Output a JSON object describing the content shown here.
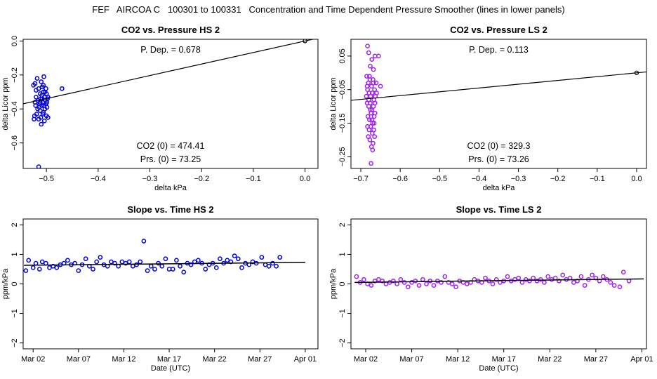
{
  "page_title": "FEF   AIRCOA C   100301 to 100331   Concentration and Time Dependent Pressure Smoother (lines in lower panels)",
  "colors": {
    "hs": "#0000dd",
    "ls": "#a020f0",
    "line": "#000000"
  },
  "chart_data": [
    {
      "type": "scatter",
      "title": "CO2 vs. Pressure HS 2",
      "xlabel": "delta kPa",
      "ylabel": "delta Licor ppm",
      "xlim": [
        -0.545,
        0.025
      ],
      "ylim": [
        -0.75,
        0.01
      ],
      "xticks": [
        -0.5,
        -0.4,
        -0.3,
        -0.2,
        -0.1,
        0.0
      ],
      "xtick_labels": [
        "−0.5",
        "−0.4",
        "−0.3",
        "−0.2",
        "−0.1",
        "0.0"
      ],
      "yticks": [
        0.0,
        -0.2,
        -0.4,
        -0.6
      ],
      "ytick_labels": [
        "0.0",
        "−0.2",
        "−0.4",
        "−0.6"
      ],
      "fit_line": {
        "slope": 0.678,
        "intercept": 0.0
      },
      "annotations": {
        "p_dep": "P. Dep. =  0.678",
        "co2_0": "CO2 (0) =  474.41",
        "prs_0": "Prs. (0) = 73.25"
      },
      "series_color": "hs",
      "origin_point": [
        0.0,
        0.0
      ],
      "points": [
        [
          -0.522,
          -0.25
        ],
        [
          -0.518,
          -0.22
        ],
        [
          -0.515,
          -0.28
        ],
        [
          -0.512,
          -0.31
        ],
        [
          -0.51,
          -0.24
        ],
        [
          -0.508,
          -0.27
        ],
        [
          -0.505,
          -0.21
        ],
        [
          -0.503,
          -0.3
        ],
        [
          -0.52,
          -0.33
        ],
        [
          -0.516,
          -0.35
        ],
        [
          -0.513,
          -0.37
        ],
        [
          -0.511,
          -0.34
        ],
        [
          -0.509,
          -0.32
        ],
        [
          -0.507,
          -0.36
        ],
        [
          -0.504,
          -0.33
        ],
        [
          -0.502,
          -0.35
        ],
        [
          -0.5,
          -0.31
        ],
        [
          -0.498,
          -0.34
        ],
        [
          -0.521,
          -0.38
        ],
        [
          -0.517,
          -0.4
        ],
        [
          -0.514,
          -0.39
        ],
        [
          -0.512,
          -0.41
        ],
        [
          -0.509,
          -0.38
        ],
        [
          -0.506,
          -0.42
        ],
        [
          -0.503,
          -0.4
        ],
        [
          -0.501,
          -0.37
        ],
        [
          -0.499,
          -0.39
        ],
        [
          -0.523,
          -0.44
        ],
        [
          -0.519,
          -0.43
        ],
        [
          -0.515,
          -0.46
        ],
        [
          -0.511,
          -0.45
        ],
        [
          -0.507,
          -0.43
        ],
        [
          -0.504,
          -0.47
        ],
        [
          -0.5,
          -0.44
        ],
        [
          -0.524,
          -0.46
        ],
        [
          -0.497,
          -0.45
        ],
        [
          -0.51,
          -0.49
        ],
        [
          -0.52,
          -0.29
        ],
        [
          -0.506,
          -0.26
        ],
        [
          -0.501,
          -0.28
        ],
        [
          -0.499,
          -0.36
        ],
        [
          -0.497,
          -0.33
        ],
        [
          -0.512,
          -0.36
        ],
        [
          -0.508,
          -0.34
        ],
        [
          -0.505,
          -0.38
        ],
        [
          -0.522,
          -0.36
        ],
        [
          -0.525,
          -0.26
        ],
        [
          -0.47,
          -0.28
        ],
        [
          -0.515,
          -0.74
        ],
        [
          -0.506,
          -0.3
        ]
      ]
    },
    {
      "type": "scatter",
      "title": "CO2 vs. Pressure LS 2",
      "xlabel": "delta kPa",
      "ylabel": "delta Licor ppm",
      "xlim": [
        -0.725,
        0.025
      ],
      "ylim": [
        -0.285,
        0.1
      ],
      "xticks": [
        -0.7,
        -0.6,
        -0.5,
        -0.4,
        -0.3,
        -0.2,
        -0.1,
        0.0
      ],
      "xtick_labels": [
        "−0.7",
        "−0.6",
        "−0.5",
        "−0.4",
        "−0.3",
        "−0.2",
        "−0.1",
        "0.0"
      ],
      "yticks": [
        0.05,
        -0.05,
        -0.15,
        -0.25
      ],
      "ytick_labels": [
        "0.05",
        "−0.05",
        "−0.15",
        "−0.25"
      ],
      "fit_line": {
        "slope": 0.113,
        "intercept": 0.0
      },
      "annotations": {
        "p_dep": "P. Dep. =  0.113",
        "co2_0": "CO2 (0) =  329.3",
        "prs_0": "Prs. (0) = 73.26"
      },
      "series_color": "ls",
      "origin_point": [
        0.0,
        0.0
      ],
      "points": [
        [
          -0.683,
          0.08
        ],
        [
          -0.68,
          0.06
        ],
        [
          -0.676,
          0.02
        ],
        [
          -0.672,
          0.04
        ],
        [
          -0.668,
          0.01
        ],
        [
          -0.664,
          0.05
        ],
        [
          -0.685,
          -0.01
        ],
        [
          -0.681,
          -0.03
        ],
        [
          -0.677,
          -0.02
        ],
        [
          -0.673,
          -0.04
        ],
        [
          -0.669,
          -0.02
        ],
        [
          -0.665,
          -0.05
        ],
        [
          -0.661,
          -0.03
        ],
        [
          -0.683,
          -0.05
        ],
        [
          -0.679,
          -0.06
        ],
        [
          -0.675,
          -0.07
        ],
        [
          -0.671,
          -0.06
        ],
        [
          -0.667,
          -0.08
        ],
        [
          -0.663,
          -0.07
        ],
        [
          -0.684,
          -0.09
        ],
        [
          -0.68,
          -0.1
        ],
        [
          -0.676,
          -0.09
        ],
        [
          -0.672,
          -0.11
        ],
        [
          -0.668,
          -0.1
        ],
        [
          -0.664,
          -0.12
        ],
        [
          -0.682,
          -0.13
        ],
        [
          -0.678,
          -0.14
        ],
        [
          -0.674,
          -0.12
        ],
        [
          -0.67,
          -0.15
        ],
        [
          -0.666,
          -0.13
        ],
        [
          -0.683,
          -0.16
        ],
        [
          -0.679,
          -0.17
        ],
        [
          -0.675,
          -0.16
        ],
        [
          -0.671,
          -0.18
        ],
        [
          -0.667,
          -0.17
        ],
        [
          -0.681,
          -0.19
        ],
        [
          -0.677,
          -0.2
        ],
        [
          -0.673,
          -0.22
        ],
        [
          -0.669,
          -0.21
        ],
        [
          -0.665,
          -0.19
        ],
        [
          -0.684,
          -0.04
        ],
        [
          -0.68,
          -0.08
        ],
        [
          -0.676,
          -0.11
        ],
        [
          -0.672,
          -0.14
        ],
        [
          -0.668,
          -0.03
        ],
        [
          -0.664,
          -0.09
        ],
        [
          -0.66,
          -0.06
        ],
        [
          -0.655,
          0.05
        ],
        [
          -0.65,
          -0.04
        ],
        [
          -0.674,
          -0.27
        ],
        [
          -0.67,
          -0.23
        ],
        [
          -0.686,
          -0.07
        ],
        [
          -0.678,
          -0.01
        ],
        [
          -0.666,
          -0.15
        ]
      ]
    },
    {
      "type": "scatter",
      "title": "Slope vs. Time HS 2",
      "xlabel": "Date (UTC)",
      "ylabel": "ppm/kPa",
      "xlim": [
        -1.1,
        31.4
      ],
      "ylim": [
        -2.2,
        2.2
      ],
      "xticks": [
        0,
        5,
        10,
        15,
        20,
        25,
        30
      ],
      "xtick_labels": [
        "Mar 02",
        "Mar 07",
        "Mar 12",
        "Mar 17",
        "Mar 22",
        "Mar 27",
        "Apr 01"
      ],
      "yticks": [
        -2,
        -1,
        0,
        1,
        2
      ],
      "ytick_labels": [
        "−2",
        "−1",
        "0",
        "1",
        "2"
      ],
      "smoother": {
        "x": [
          -1,
          30
        ],
        "y": [
          0.63,
          0.73
        ]
      },
      "series_color": "hs",
      "points": [
        [
          -0.8,
          0.45
        ],
        [
          -0.5,
          0.8
        ],
        [
          0.0,
          0.55
        ],
        [
          0.3,
          0.7
        ],
        [
          0.7,
          0.5
        ],
        [
          1.0,
          0.75
        ],
        [
          1.4,
          0.7
        ],
        [
          1.8,
          0.55
        ],
        [
          2.2,
          0.6
        ],
        [
          2.6,
          0.55
        ],
        [
          3.0,
          0.65
        ],
        [
          3.4,
          0.7
        ],
        [
          3.8,
          0.8
        ],
        [
          4.2,
          0.65
        ],
        [
          4.6,
          0.7
        ],
        [
          5.0,
          0.45
        ],
        [
          5.4,
          0.65
        ],
        [
          5.8,
          0.85
        ],
        [
          6.2,
          0.6
        ],
        [
          6.6,
          0.5
        ],
        [
          7.0,
          0.75
        ],
        [
          7.4,
          0.9
        ],
        [
          7.8,
          0.65
        ],
        [
          8.2,
          0.6
        ],
        [
          8.6,
          0.75
        ],
        [
          9.0,
          0.7
        ],
        [
          9.4,
          0.6
        ],
        [
          9.8,
          0.75
        ],
        [
          10.2,
          0.7
        ],
        [
          10.6,
          0.75
        ],
        [
          11.0,
          0.6
        ],
        [
          11.4,
          0.65
        ],
        [
          11.8,
          0.75
        ],
        [
          12.2,
          1.45
        ],
        [
          12.6,
          0.45
        ],
        [
          13.0,
          0.6
        ],
        [
          13.4,
          0.5
        ],
        [
          13.8,
          0.7
        ],
        [
          14.2,
          0.6
        ],
        [
          14.6,
          0.85
        ],
        [
          15.0,
          0.5
        ],
        [
          15.4,
          0.5
        ],
        [
          15.8,
          0.8
        ],
        [
          16.2,
          0.6
        ],
        [
          16.6,
          0.4
        ],
        [
          17.0,
          0.7
        ],
        [
          17.4,
          0.65
        ],
        [
          17.8,
          0.75
        ],
        [
          18.2,
          0.8
        ],
        [
          18.6,
          0.7
        ],
        [
          19.0,
          0.5
        ],
        [
          19.4,
          0.65
        ],
        [
          19.8,
          0.7
        ],
        [
          20.2,
          0.55
        ],
        [
          20.6,
          0.85
        ],
        [
          21.0,
          0.7
        ],
        [
          21.4,
          0.8
        ],
        [
          21.8,
          0.75
        ],
        [
          22.2,
          0.95
        ],
        [
          22.6,
          0.85
        ],
        [
          23.0,
          0.55
        ],
        [
          23.4,
          0.7
        ],
        [
          23.8,
          0.65
        ],
        [
          24.2,
          0.75
        ],
        [
          24.6,
          0.7
        ],
        [
          25.2,
          0.9
        ],
        [
          25.6,
          0.65
        ],
        [
          26.0,
          0.6
        ],
        [
          26.4,
          0.7
        ],
        [
          26.8,
          0.6
        ],
        [
          27.2,
          0.9
        ]
      ]
    },
    {
      "type": "scatter",
      "title": "Slope vs. Time LS 2",
      "xlabel": "Date (UTC)",
      "ylabel": "ppm/kPa",
      "xlim": [
        -1.6,
        30.5
      ],
      "ylim": [
        -2.2,
        2.2
      ],
      "xticks": [
        0,
        5,
        10,
        15,
        20,
        25,
        30
      ],
      "xtick_labels": [
        "Mar 02",
        "Mar 07",
        "Mar 12",
        "Mar 17",
        "Mar 22",
        "Mar 27",
        "Apr 01"
      ],
      "yticks": [
        -2,
        -1,
        0,
        1,
        2
      ],
      "ytick_labels": [
        "−2",
        "−1",
        "0",
        "1",
        "2"
      ],
      "smoother": {
        "x": [
          -1.2,
          30.2
        ],
        "y": [
          0.05,
          0.17
        ]
      },
      "series_color": "ls",
      "points": [
        [
          -1.0,
          0.25
        ],
        [
          -0.6,
          0.05
        ],
        [
          -0.2,
          0.15
        ],
        [
          0.2,
          0.0
        ],
        [
          0.6,
          -0.05
        ],
        [
          1.0,
          0.1
        ],
        [
          1.4,
          0.15
        ],
        [
          1.8,
          0.1
        ],
        [
          2.2,
          0.0
        ],
        [
          2.6,
          0.05
        ],
        [
          3.0,
          0.1
        ],
        [
          3.4,
          0.0
        ],
        [
          3.8,
          0.15
        ],
        [
          4.2,
          0.05
        ],
        [
          4.6,
          -0.1
        ],
        [
          5.0,
          0.05
        ],
        [
          5.4,
          0.1
        ],
        [
          5.8,
          -0.05
        ],
        [
          6.2,
          0.15
        ],
        [
          6.6,
          0.0
        ],
        [
          7.0,
          0.1
        ],
        [
          7.4,
          -0.05
        ],
        [
          7.8,
          0.1
        ],
        [
          8.2,
          0.05
        ],
        [
          8.6,
          0.25
        ],
        [
          9.0,
          0.05
        ],
        [
          9.4,
          0.0
        ],
        [
          9.8,
          -0.1
        ],
        [
          10.2,
          0.1
        ],
        [
          10.6,
          0.05
        ],
        [
          11.0,
          0.0
        ],
        [
          11.4,
          0.05
        ],
        [
          11.8,
          0.15
        ],
        [
          12.2,
          0.1
        ],
        [
          12.6,
          0.05
        ],
        [
          13.0,
          0.2
        ],
        [
          13.4,
          0.1
        ],
        [
          13.8,
          0.0
        ],
        [
          14.2,
          0.15
        ],
        [
          14.6,
          0.05
        ],
        [
          15.0,
          0.1
        ],
        [
          15.4,
          0.25
        ],
        [
          15.8,
          0.1
        ],
        [
          16.2,
          0.15
        ],
        [
          16.6,
          0.2
        ],
        [
          17.0,
          0.05
        ],
        [
          17.4,
          0.15
        ],
        [
          17.8,
          0.1
        ],
        [
          18.2,
          0.2
        ],
        [
          18.6,
          0.1
        ],
        [
          19.0,
          0.15
        ],
        [
          19.4,
          0.05
        ],
        [
          19.8,
          0.25
        ],
        [
          20.2,
          0.15
        ],
        [
          20.6,
          0.2
        ],
        [
          21.0,
          0.1
        ],
        [
          21.4,
          0.3
        ],
        [
          21.8,
          0.15
        ],
        [
          22.2,
          0.2
        ],
        [
          22.6,
          0.05
        ],
        [
          23.0,
          0.1
        ],
        [
          23.4,
          0.25
        ],
        [
          23.8,
          -0.05
        ],
        [
          24.2,
          0.15
        ],
        [
          24.6,
          0.3
        ],
        [
          25.0,
          0.2
        ],
        [
          25.4,
          0.1
        ],
        [
          25.8,
          0.25
        ],
        [
          26.2,
          0.15
        ],
        [
          26.6,
          0.05
        ],
        [
          27.0,
          -0.05
        ],
        [
          27.6,
          -0.1
        ],
        [
          28.0,
          0.4
        ],
        [
          28.6,
          0.1
        ]
      ]
    }
  ]
}
